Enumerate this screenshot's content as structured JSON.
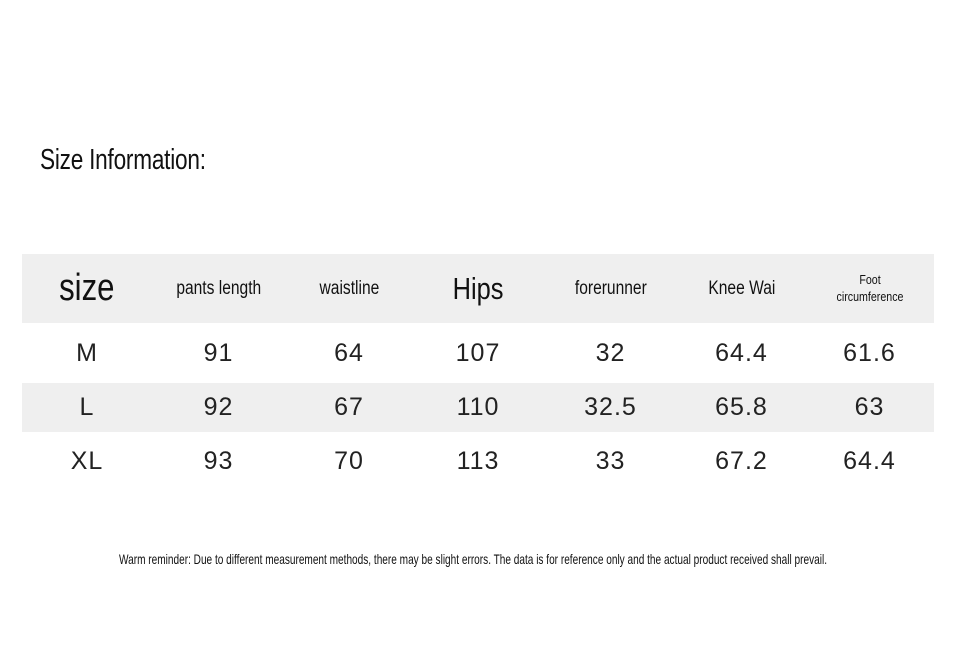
{
  "title": "Size Information:",
  "table": {
    "header": [
      "size",
      "pants length",
      "waistline",
      "Hips",
      "forerunner",
      "Knee Wai",
      "Foot circumference"
    ],
    "rows": [
      [
        "M",
        "91",
        "64",
        "107",
        "32",
        "64.4",
        "61.6"
      ],
      [
        "L",
        "92",
        "67",
        "110",
        "32.5",
        "65.8",
        "63"
      ],
      [
        "XL",
        "93",
        "70",
        "113",
        "33",
        "67.2",
        "64.4"
      ]
    ]
  },
  "reminder": "Warm reminder: Due to different measurement methods, there may be slight errors. The data is for reference only and the actual product received shall prevail."
}
